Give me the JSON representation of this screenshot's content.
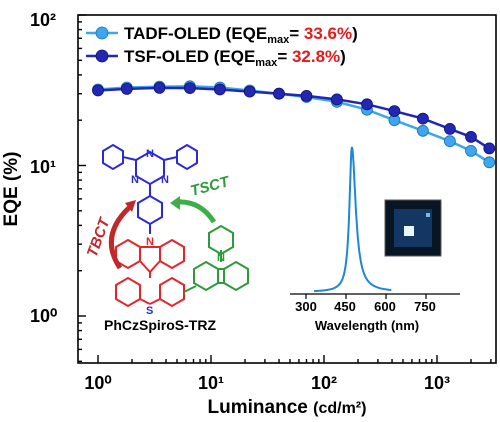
{
  "chart_data": {
    "type": "line",
    "xlabel": "Luminance",
    "xlabel_unit": "(cd/m²)",
    "ylabel": "EQE (%)",
    "xscale": "log",
    "yscale": "log",
    "xlim": [
      0.8,
      3000
    ],
    "ylim": [
      0.5,
      100
    ],
    "x_ticks": [
      "10⁰",
      "10¹",
      "10²",
      "10³"
    ],
    "y_ticks": [
      "10⁰",
      "10¹",
      "10²"
    ],
    "legend_position": "top-left",
    "series": [
      {
        "name": "TADF-OLED",
        "legend_prefix": "TADF-OLED (EQE",
        "legend_sub": "max",
        "legend_eq": "= ",
        "legend_value": "33.6%",
        "legend_close": ")",
        "color": "#3ea6ee",
        "x": [
          1,
          1.8,
          3.5,
          6.5,
          12,
          22,
          40,
          70,
          130,
          240,
          420,
          750,
          1300,
          2000,
          2900
        ],
        "y": [
          32,
          33,
          33.4,
          33.6,
          33,
          31.5,
          30,
          28.5,
          26.5,
          23.5,
          20,
          17,
          14.5,
          12.5,
          10.5
        ]
      },
      {
        "name": "TSF-OLED",
        "legend_prefix": "TSF-OLED (EQE",
        "legend_sub": "max",
        "legend_eq": "= ",
        "legend_value": "32.8%",
        "legend_close": ")",
        "color": "#2227b4",
        "x": [
          1,
          1.8,
          3.5,
          6.5,
          12,
          22,
          40,
          70,
          130,
          240,
          420,
          750,
          1300,
          2000,
          2900
        ],
        "y": [
          31.5,
          32.3,
          32.8,
          32.7,
          32,
          31,
          30,
          29,
          27.5,
          25.5,
          23,
          20.5,
          17.5,
          15.5,
          13
        ]
      }
    ],
    "inset": {
      "type": "line",
      "xlabel": "Wavelength (nm)",
      "x_ticks": [
        "300",
        "450",
        "600",
        "750"
      ],
      "xlim": [
        300,
        900
      ],
      "peak_nm": 472,
      "color": "#1f86d6"
    },
    "molecule": {
      "name": "PhCzSpiroS-TRZ",
      "arrow_left": "TBCT",
      "arrow_right": "TSCT",
      "atoms": [
        "N",
        "N",
        "N",
        "N",
        "S",
        "N"
      ]
    }
  }
}
